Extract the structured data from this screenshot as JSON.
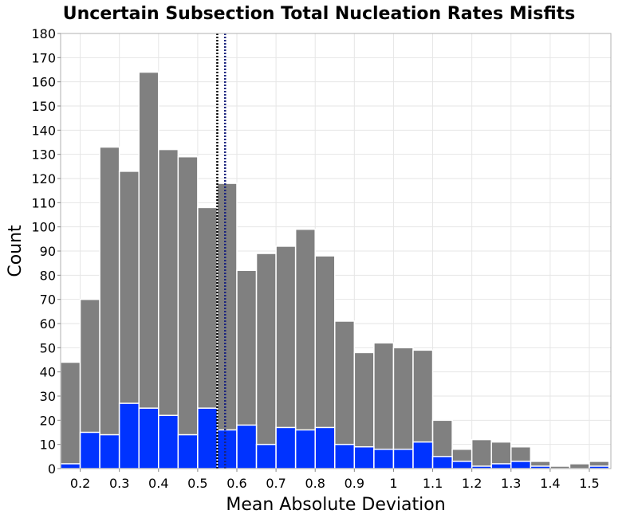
{
  "chart_data": {
    "type": "bar",
    "title": "Uncertain Subsection Total Nucleation Rates Misfits",
    "xlabel": "Mean Absolute Deviation",
    "ylabel": "Count",
    "xlim": [
      0.15,
      1.555
    ],
    "ylim": [
      0,
      180
    ],
    "bin_width": 0.05,
    "x_ticks": [
      "0.2",
      "0.3",
      "0.4",
      "0.5",
      "0.6",
      "0.7",
      "0.8",
      "0.9",
      "1",
      "1.1",
      "1.2",
      "1.3",
      "1.4",
      "1.5"
    ],
    "y_ticks": [
      "0",
      "10",
      "20",
      "30",
      "40",
      "50",
      "60",
      "70",
      "80",
      "90",
      "100",
      "110",
      "120",
      "130",
      "140",
      "150",
      "160",
      "170",
      "180"
    ],
    "grid": true,
    "bin_centers": [
      0.175,
      0.225,
      0.275,
      0.325,
      0.375,
      0.425,
      0.475,
      0.525,
      0.575,
      0.625,
      0.675,
      0.725,
      0.775,
      0.825,
      0.875,
      0.925,
      0.975,
      1.025,
      1.075,
      1.125,
      1.175,
      1.225,
      1.275,
      1.325,
      1.375,
      1.425,
      1.475,
      1.525
    ],
    "series": [
      {
        "values": [
          44,
          70,
          133,
          123,
          164,
          132,
          129,
          108,
          118,
          82,
          89,
          92,
          99,
          88,
          61,
          48,
          52,
          50,
          49,
          20,
          8,
          12,
          11,
          9,
          3,
          1,
          2,
          3
        ],
        "color": "#808080"
      },
      {
        "values": [
          2,
          15,
          14,
          27,
          25,
          22,
          14,
          25,
          16,
          18,
          10,
          17,
          16,
          17,
          10,
          9,
          8,
          8,
          11,
          5,
          3,
          1,
          2,
          3,
          1,
          0,
          0,
          1
        ],
        "color": "#0033ff"
      }
    ],
    "vlines": [
      {
        "x": 0.55,
        "color": "#000000",
        "style": "dotted"
      },
      {
        "x": 0.57,
        "color": "#1a237e",
        "style": "dotted"
      }
    ]
  }
}
